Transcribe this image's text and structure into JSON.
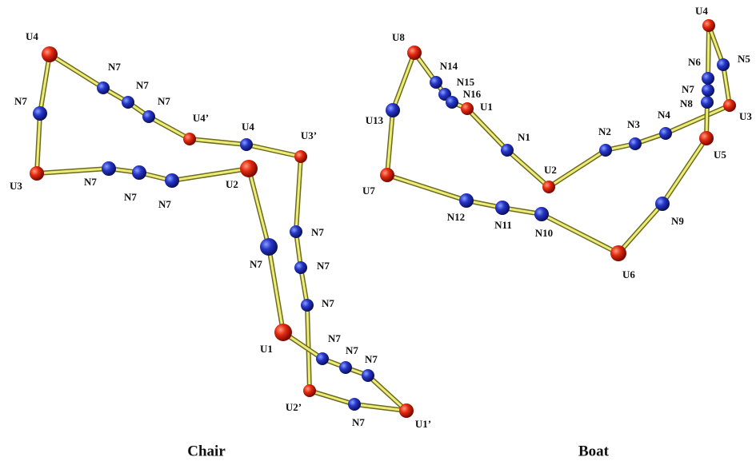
{
  "panels": [
    {
      "caption": "Chair",
      "atoms": [
        "U4",
        "N7",
        "N7",
        "N7",
        "U4’",
        "U4",
        "U3’",
        "N7",
        "U3",
        "N7",
        "N7",
        "N7",
        "U2",
        "N7",
        "N7",
        "N7",
        "N7",
        "U1",
        "N7",
        "N7",
        "N7",
        "U2’",
        "N7",
        "U1’"
      ]
    },
    {
      "caption": "Boat",
      "atoms": [
        "U8",
        "N14",
        "N15",
        "N16",
        "U1",
        "N1",
        "U2",
        "N2",
        "N3",
        "N4",
        "U3",
        "U5",
        "N8",
        "N7",
        "N6",
        "U4",
        "N5",
        "U13",
        "U7",
        "N12",
        "N11",
        "N10",
        "U6",
        "N9"
      ]
    }
  ]
}
